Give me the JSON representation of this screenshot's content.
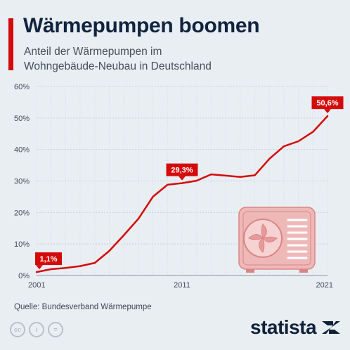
{
  "header": {
    "title": "Wärmepumpen boomen",
    "subtitle_line1": "Anteil der Wärmepumpen im",
    "subtitle_line2": "Wohngebäude-Neubau in Deutschland"
  },
  "footer": {
    "source": "Quelle: Bundesverband Wärmepumpe",
    "brand": "statista",
    "license_icons": [
      "cc-icon",
      "person-icon",
      "equals-icon"
    ]
  },
  "colors": {
    "line": "#d40a0a",
    "label_bg": "#d40a0a",
    "grid": "#c9d0d8",
    "text": "#10243e",
    "illustration": "#efb8b8",
    "illustration_stroke": "#d98585"
  },
  "chart_data": {
    "type": "line",
    "title": "Wärmepumpen boomen",
    "xlabel": "",
    "ylabel": "",
    "x": [
      2001,
      2002,
      2003,
      2004,
      2005,
      2006,
      2007,
      2008,
      2009,
      2010,
      2011,
      2012,
      2013,
      2014,
      2015,
      2016,
      2017,
      2018,
      2019,
      2020,
      2021
    ],
    "values": [
      1.1,
      2.0,
      2.4,
      3.0,
      4.0,
      7.8,
      12.8,
      18.0,
      25.0,
      28.8,
      29.3,
      30.1,
      32.1,
      31.7,
      31.3,
      31.8,
      37.0,
      41.0,
      42.6,
      45.6,
      50.6
    ],
    "xticks": [
      "2001",
      "2011",
      "2021"
    ],
    "yticks": [
      "0%",
      "10%",
      "20%",
      "30%",
      "40%",
      "50%",
      "60%"
    ],
    "ylim": [
      0,
      60
    ],
    "grid": true,
    "labels": [
      {
        "x": 2001,
        "text": "1,1%"
      },
      {
        "x": 2011,
        "text": "29,3%"
      },
      {
        "x": 2021,
        "text": "50,6%"
      }
    ],
    "illustration_icon": "heat-pump-icon"
  }
}
